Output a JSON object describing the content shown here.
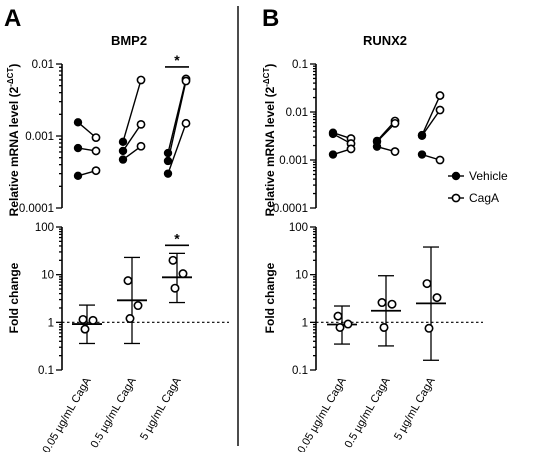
{
  "legend": {
    "entries": [
      {
        "label": "Vehicle",
        "marker": "filled-circle"
      },
      {
        "label": "CagA",
        "marker": "open-circle"
      }
    ]
  },
  "chart_data": [
    {
      "panel": "A",
      "title": "BMP2",
      "type": "scatter",
      "plot": "paired",
      "ylabel": "Relative mRNA level (2",
      "ylabel_sup": "-ΔCT",
      "ylabel_close": ")",
      "yscale": "log",
      "ylim": [
        0.0001,
        0.01
      ],
      "yticks": [
        "0.0001",
        "0.001",
        "0.01"
      ],
      "categories": [
        "0.05 µg/mL CagA",
        "0.5 µg/mL CagA",
        "5 µg/mL CagA"
      ],
      "series": [
        {
          "name": "Vehicle",
          "values": [
            [
              0.00155,
              0.00068,
              0.00028
            ],
            [
              0.00083,
              0.00062,
              0.00047
            ],
            [
              0.00058,
              0.00045,
              0.0003
            ]
          ]
        },
        {
          "name": "CagA",
          "values": [
            [
              0.00095,
              0.00062,
              0.00033
            ],
            [
              0.006,
              0.00145,
              0.00072
            ],
            [
              0.0062,
              0.0058,
              0.0015
            ]
          ]
        }
      ],
      "significance": [
        {
          "category_index": 2,
          "label": "*"
        }
      ]
    },
    {
      "panel": "A",
      "title": "",
      "type": "scatter",
      "plot": "mean_sd",
      "ylabel": "Fold change",
      "yscale": "log",
      "ylim": [
        0.1,
        100
      ],
      "yticks": [
        "0.1",
        "1",
        "10",
        "100"
      ],
      "reference_line": 1,
      "categories": [
        "0.05 µg/mL CagA",
        "0.5 µg/mL CagA",
        "5 µg/mL CagA"
      ],
      "points": [
        [
          1.15,
          1.1,
          0.72
        ],
        [
          7.5,
          2.25,
          1.2
        ],
        [
          20,
          10.5,
          5.2
        ]
      ],
      "mean": [
        0.92,
        2.9,
        8.8
      ],
      "error_low": [
        0.36,
        0.36,
        2.6
      ],
      "error_high": [
        2.3,
        23,
        28
      ],
      "significance": [
        {
          "category_index": 2,
          "label": "*"
        }
      ]
    },
    {
      "panel": "B",
      "title": "RUNX2",
      "type": "scatter",
      "plot": "paired",
      "ylabel": "Relative mRNA level (2",
      "ylabel_sup": "-ΔCT",
      "ylabel_close": ")",
      "yscale": "log",
      "ylim": [
        0.0001,
        0.1
      ],
      "yticks": [
        "0.0001",
        "0.001",
        "0.01",
        "0.1"
      ],
      "categories": [
        "0.05 µg/mL CagA",
        "0.5 µg/mL CagA",
        "5 µg/mL CagA"
      ],
      "series": [
        {
          "name": "Vehicle",
          "values": [
            [
              0.0037,
              0.0035,
              0.0013
            ],
            [
              0.0025,
              0.0024,
              0.0019
            ],
            [
              0.0033,
              0.0032,
              0.0013
            ]
          ]
        },
        {
          "name": "CagA",
          "values": [
            [
              0.0028,
              0.0022,
              0.0017
            ],
            [
              0.0065,
              0.0058,
              0.0015
            ],
            [
              0.022,
              0.011,
              0.001
            ]
          ]
        }
      ],
      "significance": []
    },
    {
      "panel": "B",
      "title": "",
      "type": "scatter",
      "plot": "mean_sd",
      "ylabel": "Fold change",
      "yscale": "log",
      "ylim": [
        0.1,
        100
      ],
      "yticks": [
        "0.1",
        "1",
        "10",
        "100"
      ],
      "reference_line": 1,
      "categories": [
        "0.05 µg/mL CagA",
        "0.5 µg/mL CagA",
        "5 µg/mL CagA"
      ],
      "points": [
        [
          1.35,
          0.92,
          0.78
        ],
        [
          2.6,
          2.4,
          0.78
        ],
        [
          6.5,
          3.3,
          0.75
        ]
      ],
      "mean": [
        0.9,
        1.75,
        2.5
      ],
      "error_low": [
        0.35,
        0.32,
        0.16
      ],
      "error_high": [
        2.2,
        9.5,
        38
      ],
      "significance": []
    }
  ]
}
